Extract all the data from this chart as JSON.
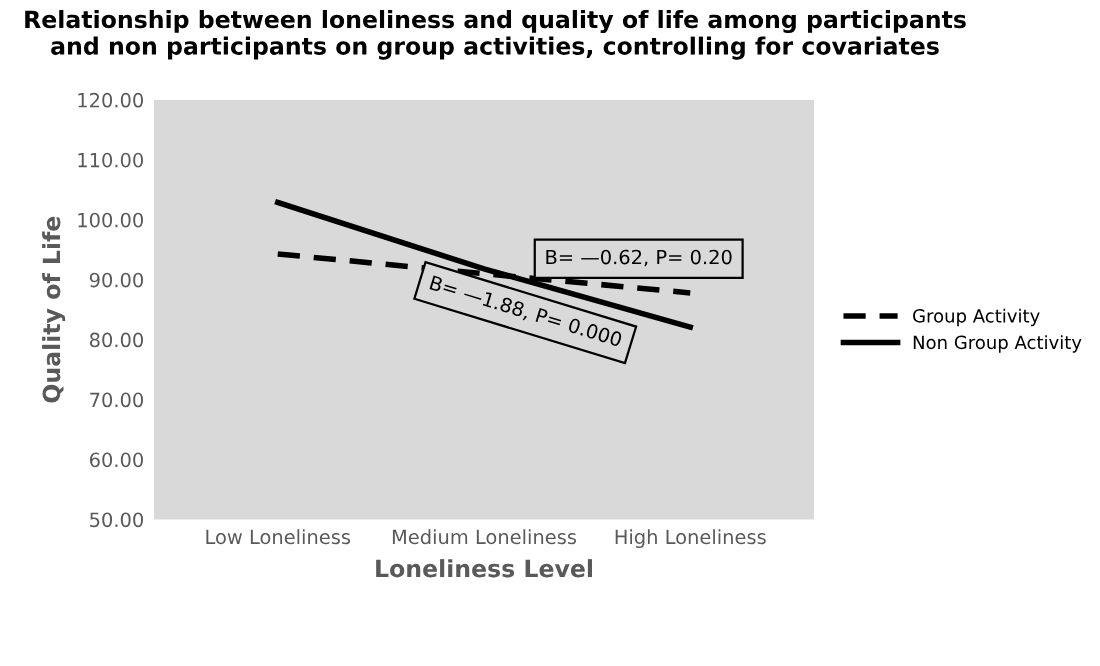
{
  "chart_data": {
    "type": "line",
    "title": "Relationship between loneliness and quality of life among participants\nand non participants on group activities, controlling for covariates",
    "xlabel": "Loneliness Level",
    "ylabel": "Quality of Life",
    "categories": [
      "Low Loneliness",
      "Medium Loneliness",
      "High Loneliness"
    ],
    "series": [
      {
        "name": "Group Activity",
        "color": "#000000",
        "line_style": "dashed",
        "values": [
          94.3,
          91.0,
          87.8
        ]
      },
      {
        "name": "Non Group Activity",
        "color": "#000000",
        "line_style": "solid",
        "values": [
          102.9,
          91.8,
          82.1
        ]
      }
    ],
    "ylim": [
      50,
      120
    ],
    "yticks": [
      {
        "value": 50,
        "label": "50.00"
      },
      {
        "value": 60,
        "label": "60.00"
      },
      {
        "value": 70,
        "label": "70.00"
      },
      {
        "value": 80,
        "label": "80.00"
      },
      {
        "value": 90,
        "label": "90.00"
      },
      {
        "value": 100,
        "label": "100.00"
      },
      {
        "value": 110,
        "label": "110.00"
      },
      {
        "value": 120,
        "label": "120.00"
      }
    ],
    "annotations": [
      "B= —0.62, P= 0.20",
      "B= —1.88, P= 0.000"
    ],
    "grid": false,
    "legend": "right",
    "marker": "none"
  }
}
